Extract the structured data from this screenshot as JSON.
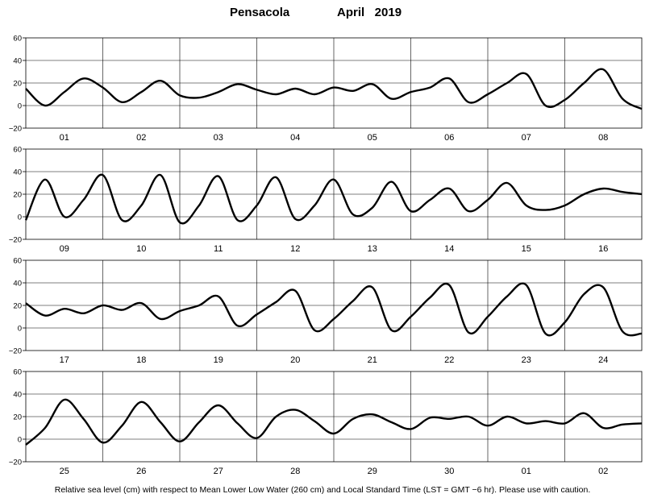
{
  "title": {
    "station": "Pensacola",
    "month_year": "April   2019"
  },
  "footer": "Relative sea level (cm) with respect to Mean Lower Low Water (260 cm) and Local Standard Time (LST = GMT −6 hr). Please use with caution.",
  "chart_data": [
    {
      "type": "line",
      "days": [
        "01",
        "02",
        "03",
        "04",
        "05",
        "06",
        "07",
        "08"
      ],
      "ylim": [
        -20,
        60
      ],
      "yticks": [
        "60",
        "40",
        "20",
        "0",
        "−20"
      ],
      "grid": false,
      "series": [
        {
          "color": "#000000",
          "x": [
            0,
            0.25,
            0.5,
            0.75,
            1,
            1.25,
            1.5,
            1.75,
            2,
            2.25,
            2.5,
            2.75,
            3,
            3.25,
            3.5,
            3.75,
            4,
            4.25,
            4.5,
            4.75,
            5,
            5.25,
            5.5,
            5.75,
            6,
            6.25,
            6.5,
            6.75,
            7,
            7.25,
            7.5,
            7.75,
            8
          ],
          "values": [
            15,
            0,
            12,
            24,
            16,
            3,
            12,
            22,
            9,
            7,
            12,
            19,
            14,
            10,
            15,
            10,
            16,
            13,
            19,
            6,
            12,
            16,
            24,
            3,
            10,
            20,
            28,
            0,
            5,
            20,
            32,
            6,
            -3
          ]
        }
      ]
    },
    {
      "type": "line",
      "days": [
        "09",
        "10",
        "11",
        "12",
        "13",
        "14",
        "15",
        "16"
      ],
      "ylim": [
        -20,
        60
      ],
      "yticks": [
        "60",
        "40",
        "20",
        "0",
        "−20"
      ],
      "grid": false,
      "series": [
        {
          "color": "#000000",
          "x": [
            0,
            0.25,
            0.5,
            0.75,
            1,
            1.25,
            1.5,
            1.75,
            2,
            2.25,
            2.5,
            2.75,
            3,
            3.25,
            3.5,
            3.75,
            4,
            4.25,
            4.5,
            4.75,
            5,
            5.25,
            5.5,
            5.75,
            6,
            6.25,
            6.5,
            6.75,
            7,
            7.25,
            7.5,
            7.75,
            8
          ],
          "values": [
            -3,
            33,
            0,
            15,
            37,
            -3,
            10,
            37,
            -5,
            10,
            36,
            -3,
            10,
            35,
            -2,
            10,
            33,
            2,
            8,
            31,
            5,
            15,
            25,
            5,
            15,
            30,
            10,
            6,
            10,
            20,
            25,
            22,
            20
          ]
        }
      ]
    },
    {
      "type": "line",
      "days": [
        "17",
        "18",
        "19",
        "20",
        "21",
        "22",
        "23",
        "24"
      ],
      "ylim": [
        -20,
        60
      ],
      "yticks": [
        "60",
        "40",
        "20",
        "0",
        "−20"
      ],
      "grid": false,
      "series": [
        {
          "color": "#000000",
          "x": [
            0,
            0.25,
            0.5,
            0.75,
            1,
            1.25,
            1.5,
            1.75,
            2,
            2.25,
            2.5,
            2.75,
            3,
            3.25,
            3.5,
            3.75,
            4,
            4.25,
            4.5,
            4.75,
            5,
            5.25,
            5.5,
            5.75,
            6,
            6.25,
            6.5,
            6.75,
            7,
            7.25,
            7.5,
            7.75,
            8
          ],
          "values": [
            22,
            11,
            17,
            13,
            20,
            16,
            22,
            8,
            15,
            20,
            28,
            2,
            12,
            23,
            33,
            -2,
            8,
            24,
            36,
            -2,
            10,
            27,
            38,
            -4,
            10,
            28,
            38,
            -5,
            5,
            30,
            36,
            -3,
            -5
          ]
        }
      ]
    },
    {
      "type": "line",
      "days": [
        "25",
        "26",
        "27",
        "28",
        "29",
        "30",
        "01",
        "02"
      ],
      "ylim": [
        -20,
        60
      ],
      "yticks": [
        "60",
        "40",
        "20",
        "0",
        "−20"
      ],
      "grid": false,
      "series": [
        {
          "color": "#000000",
          "x": [
            0,
            0.25,
            0.5,
            0.75,
            1,
            1.25,
            1.5,
            1.75,
            2,
            2.25,
            2.5,
            2.75,
            3,
            3.25,
            3.5,
            3.75,
            4,
            4.25,
            4.5,
            4.75,
            5,
            5.25,
            5.5,
            5.75,
            6,
            6.25,
            6.5,
            6.75,
            7,
            7.25,
            7.5,
            7.75,
            8
          ],
          "values": [
            -5,
            10,
            35,
            18,
            -3,
            12,
            33,
            15,
            -2,
            15,
            30,
            14,
            1,
            20,
            26,
            16,
            5,
            18,
            22,
            15,
            9,
            19,
            18,
            20,
            12,
            20,
            14,
            16,
            14,
            23,
            10,
            13,
            14
          ]
        }
      ]
    }
  ]
}
